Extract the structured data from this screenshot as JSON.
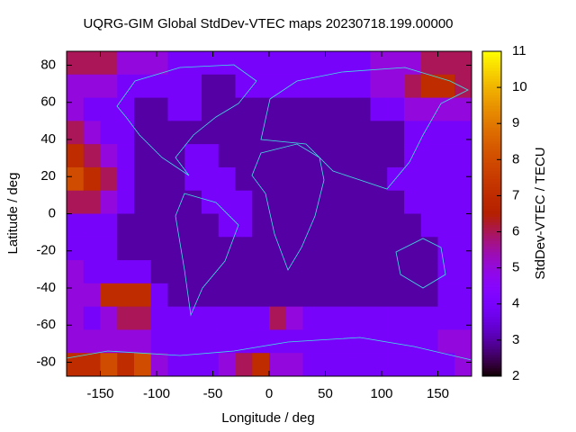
{
  "chart_data": {
    "type": "heatmap",
    "title": "UQRG-GIM Global StdDev-VTEC maps 20230718.199.00000",
    "x_label": "Longitude / deg",
    "y_label": "Latitude / deg",
    "colorbar_label": "StdDev-VTEC / TECU",
    "xlim": [
      -180,
      180
    ],
    "ylim": [
      -87.5,
      87.5
    ],
    "xticks": [
      -150,
      -100,
      -50,
      0,
      50,
      100,
      150
    ],
    "yticks": [
      -80,
      -60,
      -40,
      -20,
      0,
      20,
      40,
      60,
      80
    ],
    "zlim": [
      2,
      11
    ],
    "zticks": [
      2,
      3,
      4,
      5,
      6,
      7,
      8,
      9,
      10,
      11
    ],
    "z": [
      [
        6,
        6,
        6,
        5,
        5,
        5,
        4,
        4,
        4,
        4,
        4,
        4,
        4,
        4,
        4,
        4,
        4,
        4,
        5,
        5,
        5,
        6,
        6,
        6
      ],
      [
        5,
        5,
        5,
        4,
        4,
        4,
        4,
        4,
        3,
        3,
        4,
        4,
        4,
        4,
        4,
        4,
        4,
        4,
        5,
        5,
        6,
        7,
        7,
        6
      ],
      [
        5,
        4,
        4,
        4,
        3,
        3,
        4,
        4,
        3,
        3,
        3,
        3,
        3,
        3,
        3,
        3,
        3,
        3,
        4,
        4,
        5,
        5,
        5,
        5
      ],
      [
        6,
        5,
        4,
        4,
        3,
        3,
        3,
        3,
        3,
        3,
        3,
        3,
        3,
        3,
        3,
        3,
        3,
        3,
        3,
        3,
        4,
        4,
        4,
        4
      ],
      [
        7,
        6,
        5,
        4,
        3,
        3,
        3,
        4,
        4,
        3,
        3,
        3,
        3,
        3,
        3,
        3,
        3,
        3,
        3,
        3,
        4,
        4,
        4,
        4
      ],
      [
        8,
        7,
        6,
        4,
        3,
        3,
        3,
        4,
        4,
        4,
        3,
        3,
        3,
        3,
        3,
        3,
        3,
        3,
        3,
        4,
        4,
        4,
        4,
        4
      ],
      [
        6,
        6,
        5,
        4,
        3,
        3,
        3,
        3,
        4,
        4,
        4,
        3,
        3,
        3,
        3,
        3,
        3,
        3,
        3,
        3,
        4,
        4,
        4,
        4
      ],
      [
        4,
        4,
        4,
        3,
        3,
        3,
        3,
        3,
        3,
        4,
        4,
        3,
        3,
        3,
        3,
        3,
        3,
        3,
        3,
        3,
        3,
        4,
        4,
        4
      ],
      [
        4,
        4,
        4,
        3,
        3,
        3,
        3,
        3,
        3,
        3,
        3,
        3,
        3,
        3,
        3,
        3,
        3,
        3,
        3,
        3,
        3,
        3,
        4,
        4
      ],
      [
        5,
        4,
        4,
        4,
        4,
        3,
        3,
        3,
        3,
        3,
        3,
        3,
        3,
        3,
        3,
        3,
        3,
        3,
        3,
        3,
        3,
        3,
        4,
        4
      ],
      [
        5,
        5,
        7,
        7,
        7,
        4,
        3,
        3,
        3,
        3,
        3,
        3,
        3,
        3,
        3,
        3,
        3,
        3,
        3,
        3,
        3,
        3,
        4,
        4
      ],
      [
        5,
        4,
        5,
        6,
        6,
        4,
        4,
        4,
        4,
        4,
        4,
        4,
        6,
        5,
        4,
        4,
        4,
        4,
        4,
        4,
        4,
        4,
        4,
        4
      ],
      [
        5,
        5,
        5,
        5,
        5,
        4,
        4,
        4,
        4,
        4,
        4,
        4,
        4,
        4,
        4,
        4,
        4,
        4,
        4,
        4,
        4,
        4,
        5,
        5
      ],
      [
        7,
        7,
        8,
        7,
        8,
        5,
        4,
        4,
        4,
        5,
        6,
        7,
        5,
        5,
        4,
        4,
        4,
        4,
        4,
        4,
        4,
        4,
        4,
        5
      ]
    ]
  }
}
